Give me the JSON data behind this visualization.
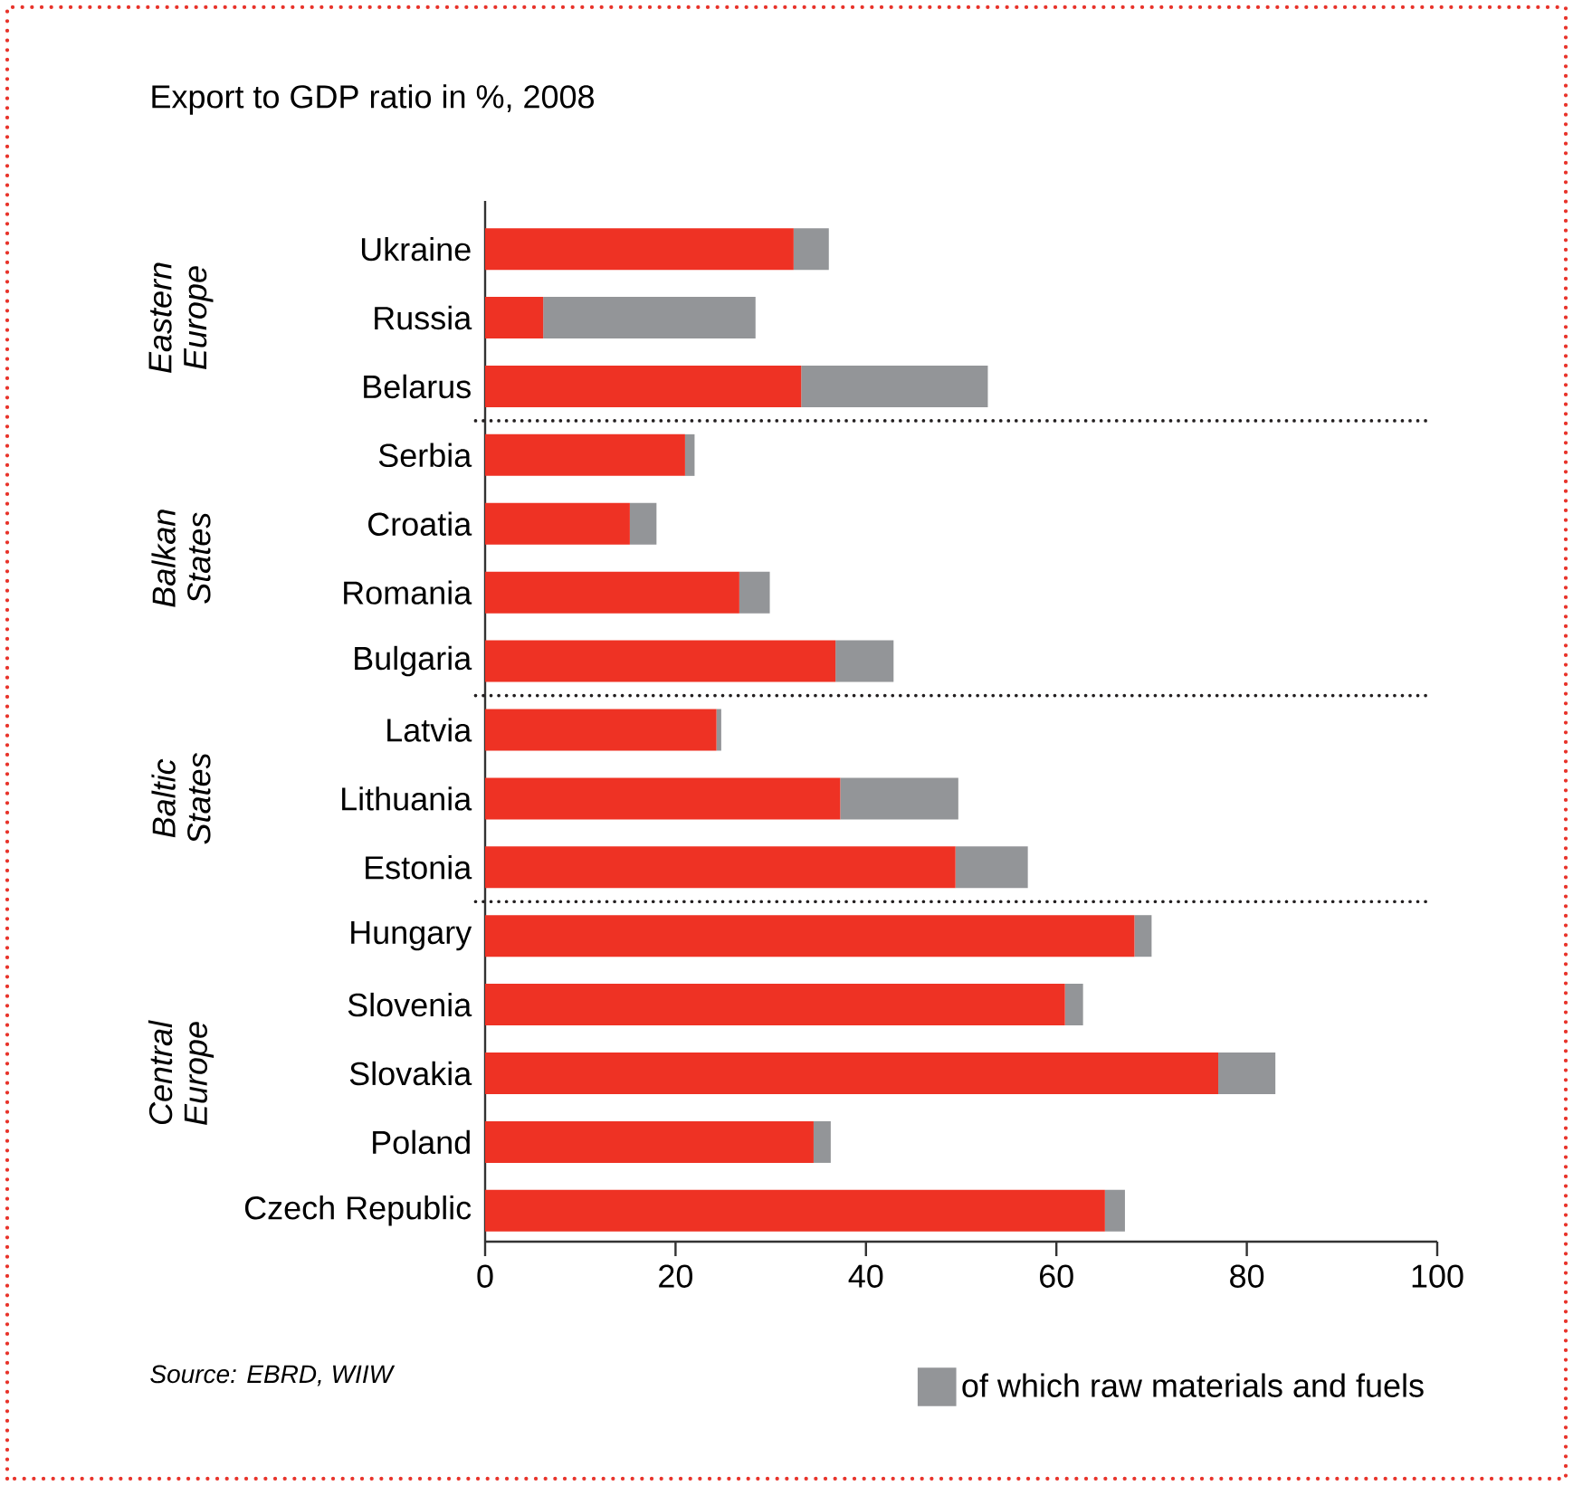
{
  "chart_data": {
    "type": "bar",
    "orientation": "horizontal",
    "stacked": true,
    "title": "Export to GDP ratio in %, 2008",
    "categories": [
      "Ukraine",
      "Russia",
      "Belarus",
      "Serbia",
      "Croatia",
      "Romania",
      "Bulgaria",
      "Latvia",
      "Lithuania",
      "Estonia",
      "Hungary",
      "Slovenia",
      "Slovakia",
      "Poland",
      "Czech Republic"
    ],
    "series": [
      {
        "color": "#ee3224",
        "values": [
          32.4,
          6.1,
          33.2,
          21.0,
          15.2,
          26.7,
          36.8,
          24.3,
          37.3,
          49.4,
          68.2,
          60.9,
          77.0,
          34.5,
          65.1
        ]
      },
      {
        "name": "of which raw materials and fuels",
        "color": "#939598",
        "values": [
          3.7,
          22.3,
          19.6,
          1.0,
          2.8,
          3.2,
          6.1,
          0.5,
          12.4,
          7.6,
          1.8,
          1.9,
          6.0,
          1.8,
          2.1
        ]
      }
    ],
    "xlim": [
      0,
      100
    ],
    "xticks": [
      0,
      20,
      40,
      60,
      80,
      100
    ],
    "annotations": [
      "Eastern Europe",
      "Balkan States",
      "Baltic States",
      "Central Europe",
      "Source: EBRD, WIIW"
    ],
    "legend": "bottom"
  }
}
